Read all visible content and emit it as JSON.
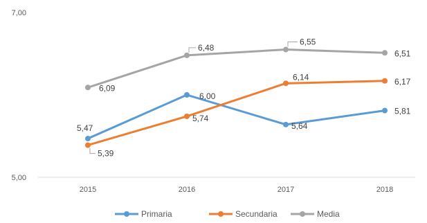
{
  "chart_data": {
    "type": "line",
    "categories": [
      "2015",
      "2016",
      "2017",
      "2018"
    ],
    "ylim": [
      5.0,
      7.0
    ],
    "y_tick_labels": [
      "5,00",
      "7,00"
    ],
    "y_ticks": [
      5.0,
      7.0
    ],
    "grid": false,
    "legend_position": "bottom",
    "series": [
      {
        "name": "Primaria",
        "color": "#5B9BD5",
        "values": [
          5.47,
          6.0,
          5.64,
          5.81
        ],
        "labels": [
          "5,47",
          "6,00",
          "5,64",
          "5,81"
        ]
      },
      {
        "name": "Secundaria",
        "color": "#ED7D31",
        "values": [
          5.39,
          5.74,
          6.14,
          6.17
        ],
        "labels": [
          "5,39",
          "5,74",
          "6,14",
          "6,17"
        ]
      },
      {
        "name": "Media",
        "color": "#A5A5A5",
        "values": [
          6.09,
          6.48,
          6.55,
          6.51
        ],
        "labels": [
          "6,09",
          "6,48",
          "6,55",
          "6,51"
        ]
      }
    ]
  }
}
